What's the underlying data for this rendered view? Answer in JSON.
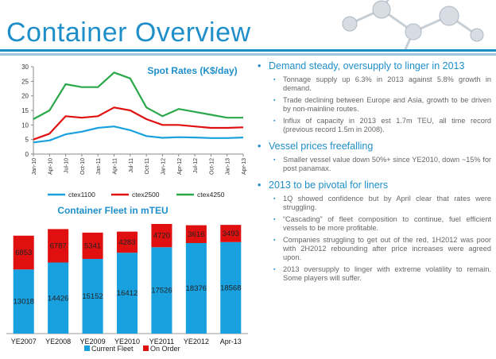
{
  "title": "Container Overview",
  "colors": {
    "accent": "#1f8fc9",
    "blue": "#19a0df",
    "red": "#e01010",
    "green": "#2aa84a"
  },
  "chart_data": [
    {
      "type": "line",
      "title": "Spot Rates (K$/day)",
      "x": [
        "Jan-10",
        "Apr-10",
        "Jul-10",
        "Oct-10",
        "Jan-11",
        "Apr-11",
        "Jul-11",
        "Oct-11",
        "Jan-12",
        "Apr-12",
        "Jul-12",
        "Oct-12",
        "Jan-13",
        "Apr-13"
      ],
      "ylim": [
        0,
        30
      ],
      "yticks": [
        0,
        5,
        10,
        15,
        20,
        25,
        30
      ],
      "series": [
        {
          "name": "ctex1100",
          "color": "#19a0df",
          "values": [
            4,
            4.7,
            6.8,
            7.7,
            9,
            9.5,
            8.2,
            6.2,
            5.6,
            5.8,
            5.7,
            5.5,
            5.5,
            5.7
          ]
        },
        {
          "name": "ctex2500",
          "color": "#e01010",
          "values": [
            5,
            7,
            13,
            12.5,
            13,
            16,
            15,
            12,
            10,
            10,
            9.5,
            9,
            9,
            9.2
          ]
        },
        {
          "name": "ctex4250",
          "color": "#2aa84a",
          "values": [
            12,
            15,
            24,
            23,
            23,
            28,
            26,
            16,
            13,
            15.5,
            14.5,
            13.5,
            12.5,
            12.5
          ]
        }
      ],
      "legend": "bottom"
    },
    {
      "type": "bar",
      "stacked": true,
      "title": "Container Fleet in mTEU",
      "categories": [
        "YE2007",
        "YE2008",
        "YE2009",
        "YE2010",
        "YE2011",
        "YE2012",
        "Apr-13"
      ],
      "series": [
        {
          "name": "Current Fleet",
          "color": "#19a0df",
          "values": [
            13018,
            14426,
            15152,
            16412,
            17526,
            18376,
            18568
          ]
        },
        {
          "name": "On Order",
          "color": "#e01010",
          "values": [
            6853,
            6787,
            5341,
            4283,
            4720,
            3616,
            3493
          ]
        }
      ],
      "legend": "bottom"
    }
  ],
  "bullets": [
    {
      "heading": "Demand steady, oversupply to linger in 2013",
      "items": [
        "Tonnage supply up 6.3% in 2013 against 5.8% growth in demand.",
        "Trade declining between Europe and Asia, growth to be driven by non-mainline routes.",
        "Influx of capacity in 2013 est 1.7m TEU, all time record (previous record 1.5m in 2008)."
      ]
    },
    {
      "heading": "Vessel prices freefalling",
      "items": [
        "Smaller vessel value down 50%+ since YE2010, down ~15% for post panamax."
      ]
    },
    {
      "heading": "2013 to be pivotal for liners",
      "items": [
        "1Q showed confidence but by April clear that rates were struggling.",
        "“Cascading” of fleet composition to continue, fuel efficient vessels to be more profitable.",
        "Companies struggling to get out of the red, 1H2012 was poor with 2H2012 rebounding after price increases were agreed upon.",
        "2013 oversupply to linger with extreme volatility to remain. Some players will suffer."
      ]
    }
  ]
}
